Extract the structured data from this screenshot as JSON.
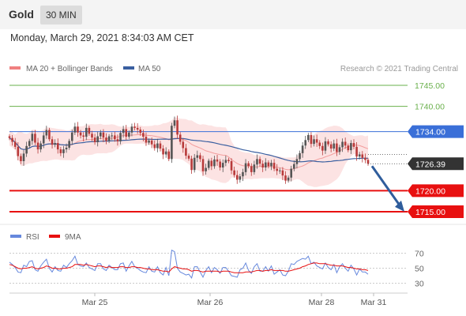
{
  "header": {
    "symbol": "Gold",
    "timeframe": "30 MIN"
  },
  "timestamp": "Monday, March 29, 2021 8:34:03 AM CET",
  "legend": {
    "bollinger": "MA 20 + Bollinger Bands",
    "ma50": "MA 50",
    "rsi": "RSI",
    "ma9": "9MA",
    "copyright": "Research © 2021 Trading Central"
  },
  "colors": {
    "bollinger": "#f08080",
    "ma50": "#3a5fa0",
    "rsi": "#6688dd",
    "ma9": "#e81010",
    "target": "#6ab04c",
    "pivot": "#3a6fd8",
    "support": "#e81010",
    "bull": "#555555",
    "bear": "#b83a3a"
  },
  "chart_data": {
    "type": "candlestick",
    "y_min": 1712,
    "y_max": 1748,
    "x_labels": [
      "Mar 25",
      "Mar 26",
      "Mar 28",
      "Mar 31"
    ],
    "levels": [
      {
        "value": 1745.0,
        "label": "1745.00",
        "kind": "target"
      },
      {
        "value": 1740.0,
        "label": "1740.00",
        "kind": "target"
      },
      {
        "value": 1734.0,
        "label": "1734.00",
        "kind": "pivot"
      },
      {
        "value": 1720.0,
        "label": "1720.00",
        "kind": "support"
      },
      {
        "value": 1715.0,
        "label": "1715.00",
        "kind": "support"
      }
    ],
    "last_price": {
      "value": 1726.39,
      "label": "1726.39"
    },
    "close": [
      1732.5,
      1731.6,
      1730.4,
      1728.2,
      1727.0,
      1728.8,
      1730.6,
      1731.8,
      1733.5,
      1731.4,
      1729.8,
      1731.2,
      1733.1,
      1734.4,
      1732.2,
      1730.9,
      1731.3,
      1729.8,
      1728.9,
      1729.8,
      1730.2,
      1731.8,
      1733.8,
      1735.2,
      1733.8,
      1733.1,
      1732.8,
      1734.9,
      1733.5,
      1732.6,
      1731.5,
      1732.9,
      1733.8,
      1732.6,
      1731.8,
      1732.9,
      1733.1,
      1732.2,
      1731.7,
      1733.7,
      1734.6,
      1732.8,
      1733.8,
      1735.2,
      1734.9,
      1734.5,
      1733.7,
      1732.8,
      1731.4,
      1731.9,
      1731.0,
      1730.1,
      1731.2,
      1730.0,
      1728.6,
      1729.3,
      1727.5,
      1735.4,
      1736.7,
      1733.3,
      1731.6,
      1730.1,
      1728.3,
      1727.6,
      1724.9,
      1727.8,
      1728.4,
      1727.5,
      1724.6,
      1725.4,
      1727.1,
      1725.8,
      1727.4,
      1726.9,
      1725.5,
      1726.6,
      1727.3,
      1727.0,
      1724.8,
      1723.7,
      1722.6,
      1723.4,
      1724.4,
      1726.5,
      1725.8,
      1724.4,
      1726.2,
      1727.5,
      1726.4,
      1725.5,
      1726.7,
      1725.8,
      1726.6,
      1725.2,
      1724.7,
      1724.8,
      1723.6,
      1722.4,
      1723.1,
      1725.2,
      1726.3,
      1727.5,
      1728.9,
      1730.7,
      1732.0,
      1733.2,
      1731.1,
      1732.2,
      1731.4,
      1730.6,
      1729.5,
      1731.7,
      1731.0,
      1730.0,
      1731.2,
      1729.2,
      1730.3,
      1731.6,
      1730.7,
      1729.6,
      1731.3,
      1730.4,
      1728.1,
      1728.6,
      1727.8,
      1727.3,
      1726.4
    ],
    "rsi": [
      58,
      55,
      51,
      45,
      44,
      54,
      52,
      59,
      60,
      48,
      46,
      53,
      58,
      62,
      50,
      45,
      52,
      47,
      46,
      54,
      51,
      56,
      60,
      66,
      55,
      53,
      52,
      57,
      51,
      49,
      47,
      56,
      56,
      49,
      47,
      54,
      51,
      48,
      48,
      56,
      57,
      46,
      53,
      59,
      52,
      50,
      47,
      45,
      44,
      52,
      46,
      45,
      52,
      44,
      41,
      51,
      40,
      74,
      72,
      50,
      45,
      43,
      41,
      42,
      37,
      52,
      52,
      45,
      38,
      47,
      52,
      44,
      51,
      48,
      43,
      51,
      51,
      46,
      40,
      39,
      38,
      48,
      50,
      57,
      47,
      43,
      52,
      56,
      46,
      46,
      52,
      46,
      53,
      42,
      45,
      48,
      41,
      40,
      46,
      56,
      55,
      59,
      61,
      63,
      62,
      66,
      56,
      58,
      53,
      51,
      49,
      57,
      51,
      48,
      55,
      44,
      52,
      56,
      50,
      46,
      54,
      49,
      41,
      49,
      45,
      45,
      42
    ],
    "rsi_ma9": [
      55,
      54,
      52,
      50,
      49,
      50,
      50,
      51,
      52,
      50,
      49,
      50,
      51,
      53,
      52,
      50,
      50,
      49,
      49,
      50,
      50,
      51,
      52,
      55,
      55,
      55,
      54,
      55,
      54,
      53,
      52,
      53,
      53,
      52,
      51,
      52,
      51,
      51,
      51,
      52,
      52,
      51,
      51,
      52,
      52,
      51,
      51,
      50,
      49,
      49,
      48,
      48,
      48,
      47,
      46,
      46,
      45,
      49,
      52,
      51,
      50,
      49,
      49,
      48,
      46,
      47,
      47,
      46,
      45,
      46,
      46,
      46,
      46,
      46,
      45,
      46,
      46,
      46,
      45,
      44,
      44,
      44,
      44,
      45,
      45,
      45,
      46,
      47,
      47,
      46,
      47,
      47,
      48,
      47,
      47,
      47,
      47,
      46,
      46,
      47,
      48,
      49,
      50,
      52,
      53,
      55,
      56,
      57,
      57,
      56,
      56,
      56,
      55,
      54,
      54,
      53,
      53,
      53,
      52,
      51,
      51,
      50,
      49,
      49,
      48,
      48,
      47
    ],
    "rsi_levels": [
      70,
      50,
      30
    ]
  }
}
